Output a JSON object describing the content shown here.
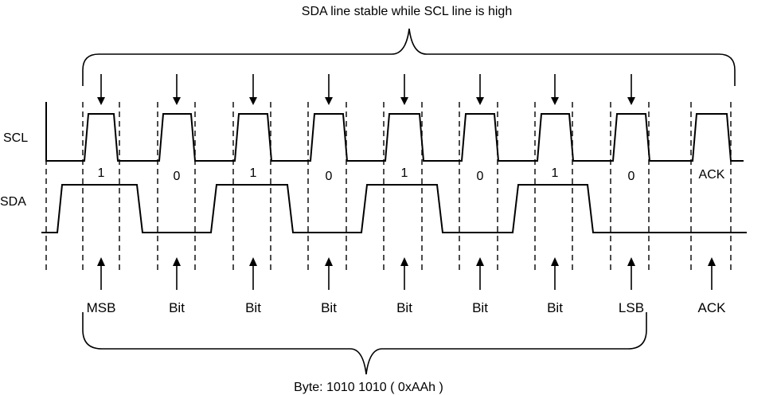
{
  "top_caption": "SDA line stable while SCL line is high",
  "bottom_caption": "Byte: 1010 1010 ( 0xAAh )",
  "signals": {
    "scl_label": "SCL",
    "sda_label": "SDA"
  },
  "bits": [
    {
      "value": "1",
      "name": "MSB"
    },
    {
      "value": "0",
      "name": "Bit"
    },
    {
      "value": "1",
      "name": "Bit"
    },
    {
      "value": "0",
      "name": "Bit"
    },
    {
      "value": "1",
      "name": "Bit"
    },
    {
      "value": "0",
      "name": "Bit"
    },
    {
      "value": "1",
      "name": "Bit"
    },
    {
      "value": "0",
      "name": "LSB"
    },
    {
      "value": "ACK",
      "name": "ACK"
    }
  ]
}
